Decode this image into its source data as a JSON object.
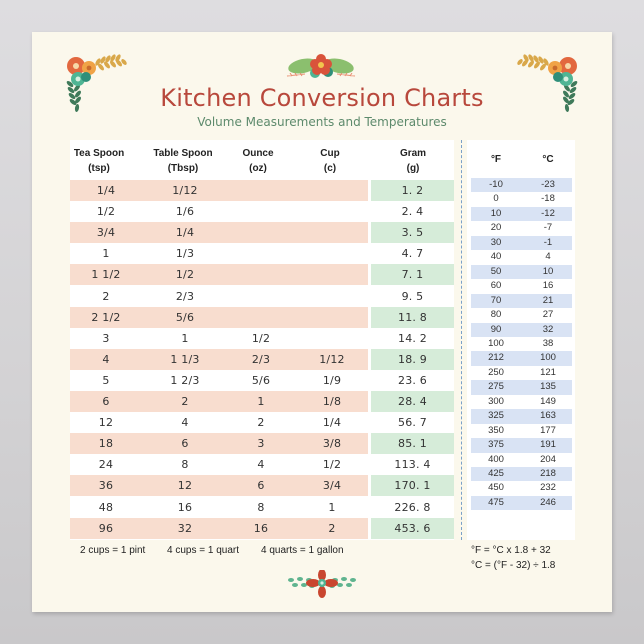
{
  "poster": {
    "title": "Kitchen Conversion Charts",
    "subtitle": "Volume Measurements and Temperatures",
    "colors": {
      "title": "#b8483c",
      "subtitle": "#5d8a6c",
      "background": "#fbf8ec",
      "peach_row": "#f8ddcf",
      "green_cell": "#d6ecd9",
      "blue_row": "#d9e3f4"
    }
  },
  "volume_table": {
    "headers": [
      {
        "line1": "Tea Spoon",
        "line2": "(tsp)"
      },
      {
        "line1": "Table Spoon",
        "line2": "(Tbsp)"
      },
      {
        "line1": "Ounce",
        "line2": "(oz)"
      },
      {
        "line1": "Cup",
        "line2": "(c)"
      },
      {
        "line1": "Gram",
        "line2": "(g)"
      }
    ],
    "rows": [
      {
        "tsp": "1/4",
        "tbsp": "1/12",
        "oz": "",
        "cup": "",
        "g": "1. 2"
      },
      {
        "tsp": "1/2",
        "tbsp": "1/6",
        "oz": "",
        "cup": "",
        "g": "2. 4"
      },
      {
        "tsp": "3/4",
        "tbsp": "1/4",
        "oz": "",
        "cup": "",
        "g": "3. 5"
      },
      {
        "tsp": "1",
        "tbsp": "1/3",
        "oz": "",
        "cup": "",
        "g": "4. 7"
      },
      {
        "tsp": "1 1/2",
        "tbsp": "1/2",
        "oz": "",
        "cup": "",
        "g": "7. 1"
      },
      {
        "tsp": "2",
        "tbsp": "2/3",
        "oz": "",
        "cup": "",
        "g": "9. 5"
      },
      {
        "tsp": "2 1/2",
        "tbsp": "5/6",
        "oz": "",
        "cup": "",
        "g": "11. 8"
      },
      {
        "tsp": "3",
        "tbsp": "1",
        "oz": "1/2",
        "cup": "",
        "g": "14. 2"
      },
      {
        "tsp": "4",
        "tbsp": "1 1/3",
        "oz": "2/3",
        "cup": "1/12",
        "g": "18. 9"
      },
      {
        "tsp": "5",
        "tbsp": "1 2/3",
        "oz": "5/6",
        "cup": "1/9",
        "g": "23. 6"
      },
      {
        "tsp": "6",
        "tbsp": "2",
        "oz": "1",
        "cup": "1/8",
        "g": "28. 4"
      },
      {
        "tsp": "12",
        "tbsp": "4",
        "oz": "2",
        "cup": "1/4",
        "g": "56. 7"
      },
      {
        "tsp": "18",
        "tbsp": "6",
        "oz": "3",
        "cup": "3/8",
        "g": "85. 1"
      },
      {
        "tsp": "24",
        "tbsp": "8",
        "oz": "4",
        "cup": "1/2",
        "g": "113. 4"
      },
      {
        "tsp": "36",
        "tbsp": "12",
        "oz": "6",
        "cup": "3/4",
        "g": "170. 1"
      },
      {
        "tsp": "48",
        "tbsp": "16",
        "oz": "8",
        "cup": "1",
        "g": "226. 8"
      },
      {
        "tsp": "96",
        "tbsp": "32",
        "oz": "16",
        "cup": "2",
        "g": "453. 6"
      }
    ],
    "notes": [
      "2 cups = 1 pint",
      "4 cups = 1 quart",
      "4 quarts = 1 gallon"
    ]
  },
  "temperature_table": {
    "headers": {
      "f": "°F",
      "c": "°C"
    },
    "rows": [
      {
        "f": "-10",
        "c": "-23"
      },
      {
        "f": "0",
        "c": "-18"
      },
      {
        "f": "10",
        "c": "-12"
      },
      {
        "f": "20",
        "c": "-7"
      },
      {
        "f": "30",
        "c": "-1"
      },
      {
        "f": "40",
        "c": "4"
      },
      {
        "f": "50",
        "c": "10"
      },
      {
        "f": "60",
        "c": "16"
      },
      {
        "f": "70",
        "c": "21"
      },
      {
        "f": "80",
        "c": "27"
      },
      {
        "f": "90",
        "c": "32"
      },
      {
        "f": "100",
        "c": "38"
      },
      {
        "f": "212",
        "c": "100"
      },
      {
        "f": "250",
        "c": "121"
      },
      {
        "f": "275",
        "c": "135"
      },
      {
        "f": "300",
        "c": "149"
      },
      {
        "f": "325",
        "c": "163"
      },
      {
        "f": "350",
        "c": "177"
      },
      {
        "f": "375",
        "c": "191"
      },
      {
        "f": "400",
        "c": "204"
      },
      {
        "f": "425",
        "c": "218"
      },
      {
        "f": "450",
        "c": "232"
      },
      {
        "f": "475",
        "c": "246"
      }
    ],
    "formulas": [
      "°F = °C x 1.8 + 32",
      "°C = (°F - 32) ÷ 1.8"
    ]
  },
  "decorations": [
    {
      "name": "top-left-floral-corner-icon"
    },
    {
      "name": "top-center-floral-icon"
    },
    {
      "name": "top-right-floral-corner-icon"
    },
    {
      "name": "bottom-center-floral-icon"
    }
  ]
}
